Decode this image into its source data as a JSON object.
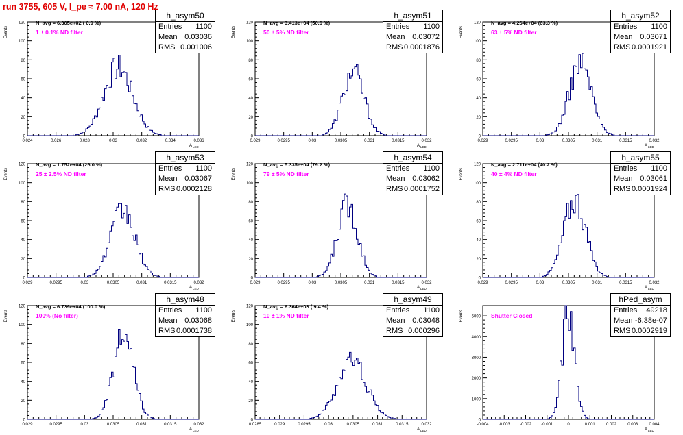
{
  "title": "run 3755,   605 V, I_pe ≈ 7.00 nA, 120 Hz",
  "y_axis_label": "Events",
  "x_axis_label": "A",
  "x_axis_subscript": "LED",
  "stats_labels": {
    "entries": "Entries",
    "mean": "Mean",
    "rms": "RMS"
  },
  "colors": {
    "histogram": "#000080",
    "annotation": "#ff00ff",
    "title": "#e00000"
  },
  "chart_data": [
    {
      "type": "histogram",
      "name": "h_asym50",
      "n_avg": "N_avg = 6.305e+02 ( 0.9 %)",
      "filter_label": "1 ± 0.1% ND filter",
      "stats": {
        "entries": "1100",
        "mean": "0.03036",
        "rms": "0.001006"
      },
      "xlim": [
        0.024,
        0.036
      ],
      "ylim": [
        0,
        120
      ],
      "xticks": [
        "0.024",
        "0.026",
        "0.028",
        "0.03",
        "0.032",
        "0.034",
        "0.036"
      ],
      "yticks": [
        "0",
        "20",
        "40",
        "60",
        "80",
        "100",
        "120"
      ],
      "mean": 0.03036,
      "rms": 0.001006,
      "peak": 72
    },
    {
      "type": "histogram",
      "name": "h_asym51",
      "n_avg": "N_avg = 3.413e+04 (50.6 %)",
      "filter_label": "50 ± 5% ND filter",
      "stats": {
        "entries": "1100",
        "mean": "0.03072",
        "rms": "0.0001876"
      },
      "xlim": [
        0.029,
        0.032
      ],
      "ylim": [
        0,
        120
      ],
      "xticks": [
        "0.029",
        "0.0295",
        "0.03",
        "0.0305",
        "0.031",
        "0.0315",
        "0.032"
      ],
      "yticks": [
        "0",
        "20",
        "40",
        "60",
        "80",
        "100",
        "120"
      ],
      "mean": 0.03072,
      "rms": 0.0001876,
      "peak": 67
    },
    {
      "type": "histogram",
      "name": "h_asym52",
      "n_avg": "N_avg = 4.264e+04 (63.3 %)",
      "filter_label": "63 ± 5% ND filter",
      "stats": {
        "entries": "1100",
        "mean": "0.03071",
        "rms": "0.0001921"
      },
      "xlim": [
        0.029,
        0.032
      ],
      "ylim": [
        0,
        120
      ],
      "xticks": [
        "0.029",
        "0.0295",
        "0.03",
        "0.0305",
        "0.031",
        "0.0315",
        "0.032"
      ],
      "yticks": [
        "0",
        "20",
        "40",
        "60",
        "80",
        "100",
        "120"
      ],
      "mean": 0.03071,
      "rms": 0.0001921,
      "peak": 77
    },
    {
      "type": "histogram",
      "name": "h_asym53",
      "n_avg": "N_avg = 1.752e+04 (26.0 %)",
      "filter_label": "25 ± 2.5% ND filter",
      "stats": {
        "entries": "1100",
        "mean": "0.03067",
        "rms": "0.0002128"
      },
      "xlim": [
        0.029,
        0.032
      ],
      "ylim": [
        0,
        120
      ],
      "xticks": [
        "0.029",
        "0.0295",
        "0.03",
        "0.0305",
        "0.031",
        "0.0315",
        "0.032"
      ],
      "yticks": [
        "0",
        "20",
        "40",
        "60",
        "80",
        "100",
        "120"
      ],
      "mean": 0.03067,
      "rms": 0.0002128,
      "peak": 70
    },
    {
      "type": "histogram",
      "name": "h_asym54",
      "n_avg": "N_avg = 5.335e+04 (79.2 %)",
      "filter_label": "79 ± 5% ND filter",
      "stats": {
        "entries": "1100",
        "mean": "0.03062",
        "rms": "0.0001752"
      },
      "xlim": [
        0.029,
        0.032
      ],
      "ylim": [
        0,
        120
      ],
      "xticks": [
        "0.029",
        "0.0295",
        "0.03",
        "0.0305",
        "0.031",
        "0.0315",
        "0.032"
      ],
      "yticks": [
        "0",
        "20",
        "40",
        "60",
        "80",
        "100",
        "120"
      ],
      "mean": 0.03062,
      "rms": 0.0001752,
      "peak": 77
    },
    {
      "type": "histogram",
      "name": "h_asym55",
      "n_avg": "N_avg = 2.711e+04 (40.2 %)",
      "filter_label": "40 ± 4% ND filter",
      "stats": {
        "entries": "1100",
        "mean": "0.03061",
        "rms": "0.0001924"
      },
      "xlim": [
        0.029,
        0.032
      ],
      "ylim": [
        0,
        120
      ],
      "xticks": [
        "0.029",
        "0.0295",
        "0.03",
        "0.0305",
        "0.031",
        "0.0315",
        "0.032"
      ],
      "yticks": [
        "0",
        "20",
        "40",
        "60",
        "80",
        "100",
        "120"
      ],
      "mean": 0.03061,
      "rms": 0.0001924,
      "peak": 82
    },
    {
      "type": "histogram",
      "name": "h_asym48",
      "n_avg": "N_avg = 6.739e+04 (100.0 %)",
      "filter_label": "100% (No filter)",
      "stats": {
        "entries": "1100",
        "mean": "0.03068",
        "rms": "0.0001738"
      },
      "xlim": [
        0.029,
        0.032
      ],
      "ylim": [
        0,
        120
      ],
      "xticks": [
        "0.029",
        "0.0295",
        "0.03",
        "0.0305",
        "0.031",
        "0.0315",
        "0.032"
      ],
      "yticks": [
        "0",
        "20",
        "40",
        "60",
        "80",
        "100",
        "120"
      ],
      "mean": 0.03068,
      "rms": 0.0001738,
      "peak": 87
    },
    {
      "type": "histogram",
      "name": "h_asym49",
      "n_avg": "N_avg = 6.364e+03 ( 9.4 %)",
      "filter_label": "10 ± 1% ND filter",
      "stats": {
        "entries": "1100",
        "mean": "0.03048",
        "rms": "0.000296"
      },
      "xlim": [
        0.0285,
        0.032
      ],
      "ylim": [
        0,
        120
      ],
      "xticks": [
        "0.0285",
        "0.029",
        "0.0295",
        "0.03",
        "0.0305",
        "0.031",
        "0.0315",
        "0.032"
      ],
      "yticks": [
        "0",
        "20",
        "40",
        "60",
        "80",
        "100",
        "120"
      ],
      "mean": 0.03048,
      "rms": 0.000296,
      "peak": 62
    },
    {
      "type": "histogram",
      "name": "hPed_asym",
      "n_avg": "",
      "filter_label": "Shutter Closed",
      "stats": {
        "entries": "49218",
        "mean": "-6.38e-07",
        "rms": "0.0002919"
      },
      "xlim": [
        -0.004,
        0.004
      ],
      "ylim": [
        0,
        5500
      ],
      "xticks": [
        "-0.004",
        "-0.003",
        "-0.002",
        "-0.001",
        "0",
        "0.001",
        "0.002",
        "0.003",
        "0.004"
      ],
      "yticks": [
        "0",
        "1000",
        "2000",
        "3000",
        "4000",
        "5000"
      ],
      "mean": 0.0,
      "rms": 0.00029,
      "peak": 5150
    }
  ]
}
